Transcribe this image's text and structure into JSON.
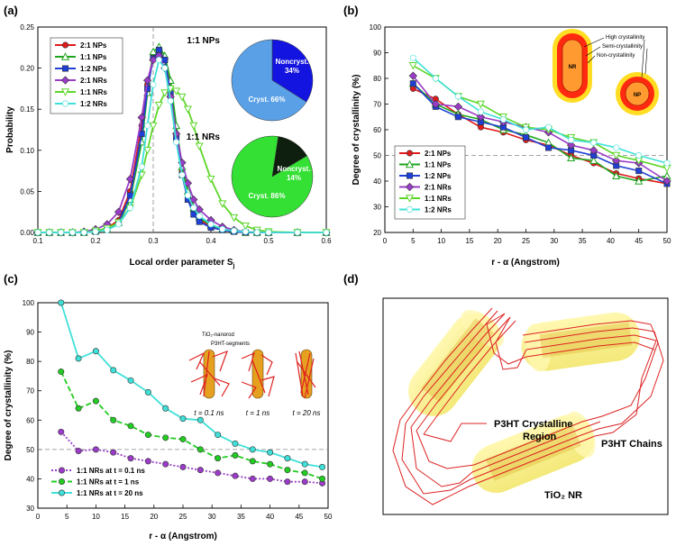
{
  "panels": {
    "a": "(a)",
    "b": "(b)",
    "c": "(c)",
    "d": "(d)"
  },
  "chart_data": [
    {
      "id": "a",
      "type": "line",
      "title": "",
      "xlabel": "Local order parameter S",
      "xlabel_sub": "j",
      "ylabel": "Probability",
      "xlim": [
        0.1,
        0.6
      ],
      "ylim": [
        0,
        0.25
      ],
      "xticks": [
        "0.1",
        "0.2",
        "0.3",
        "0.4",
        "0.5",
        "0.6"
      ],
      "yticks": [
        "0.00",
        "0.05",
        "0.10",
        "0.15",
        "0.20",
        "0.25"
      ],
      "x": [
        0.1,
        0.12,
        0.14,
        0.16,
        0.18,
        0.2,
        0.22,
        0.24,
        0.26,
        0.28,
        0.29,
        0.3,
        0.31,
        0.32,
        0.33,
        0.34,
        0.35,
        0.36,
        0.37,
        0.38,
        0.4,
        0.42,
        0.44,
        0.46,
        0.48,
        0.5,
        0.55,
        0.6
      ],
      "series": [
        {
          "name": "2:1 NPs",
          "color": "#e01b1b",
          "marker": "circle",
          "values": [
            0,
            0,
            0,
            0,
            0,
            0.002,
            0.005,
            0.015,
            0.05,
            0.13,
            0.18,
            0.215,
            0.222,
            0.21,
            0.175,
            0.12,
            0.075,
            0.045,
            0.025,
            0.015,
            0.008,
            0.004,
            0.002,
            0,
            0,
            0,
            0,
            0
          ]
        },
        {
          "name": "1:1 NPs",
          "color": "#1fa51f",
          "marker": "triangle-up",
          "values": [
            0,
            0,
            0,
            0,
            0,
            0.002,
            0.004,
            0.012,
            0.04,
            0.11,
            0.17,
            0.22,
            0.226,
            0.215,
            0.185,
            0.13,
            0.08,
            0.05,
            0.03,
            0.018,
            0.009,
            0.004,
            0.002,
            0,
            0,
            0,
            0,
            0
          ]
        },
        {
          "name": "1:2 NPs",
          "color": "#1f3fd6",
          "marker": "square",
          "values": [
            0,
            0,
            0,
            0,
            0,
            0.001,
            0.004,
            0.012,
            0.045,
            0.12,
            0.175,
            0.212,
            0.222,
            0.21,
            0.17,
            0.115,
            0.07,
            0.04,
            0.022,
            0.013,
            0.006,
            0.003,
            0.001,
            0,
            0,
            0,
            0,
            0
          ]
        },
        {
          "name": "2:1 NRs",
          "color": "#9a3cc8",
          "marker": "diamond",
          "values": [
            0,
            0,
            0,
            0,
            0.001,
            0.004,
            0.01,
            0.025,
            0.065,
            0.14,
            0.185,
            0.21,
            0.215,
            0.2,
            0.165,
            0.12,
            0.085,
            0.06,
            0.04,
            0.028,
            0.015,
            0.007,
            0.003,
            0.001,
            0,
            0,
            0,
            0
          ]
        },
        {
          "name": "1:1 NRs",
          "color": "#5ed62a",
          "marker": "triangle-down",
          "values": [
            0,
            0,
            0,
            0,
            0,
            0.002,
            0.005,
            0.012,
            0.03,
            0.07,
            0.1,
            0.13,
            0.155,
            0.17,
            0.175,
            0.172,
            0.165,
            0.15,
            0.13,
            0.105,
            0.065,
            0.035,
            0.018,
            0.008,
            0.003,
            0.001,
            0,
            0
          ]
        },
        {
          "name": "1:2 NRs",
          "color": "#3fe0d8",
          "marker": "circle-open",
          "values": [
            0,
            0,
            0,
            0,
            0,
            0.001,
            0.003,
            0.01,
            0.03,
            0.08,
            0.13,
            0.18,
            0.21,
            0.2,
            0.16,
            0.11,
            0.07,
            0.045,
            0.03,
            0.02,
            0.01,
            0.004,
            0.002,
            0.001,
            0,
            0,
            0,
            0
          ]
        }
      ],
      "vline": 0.3,
      "pies": [
        {
          "title": "1:1 NPs",
          "slices": [
            {
              "label": "Noncryst.",
              "pct": "34%",
              "value": 34,
              "color": "#1414e0"
            },
            {
              "label": "Cryst.",
              "pct": "66%",
              "value": 66,
              "color": "#5aa0e6"
            }
          ]
        },
        {
          "title": "1:1 NRs",
          "slices": [
            {
              "label": "Noncryst.",
              "pct": "14%",
              "value": 14,
              "color": "#0f1f0f"
            },
            {
              "label": "Cryst.",
              "pct": "86%",
              "value": 86,
              "color": "#33e033"
            }
          ]
        }
      ]
    },
    {
      "id": "b",
      "type": "line",
      "title": "",
      "xlabel": "r - α (Angstrom)",
      "ylabel": "Degree of crystallinity (%)",
      "xlim": [
        0,
        50
      ],
      "ylim": [
        20,
        100
      ],
      "xticks": [
        "0",
        "5",
        "10",
        "15",
        "20",
        "25",
        "30",
        "35",
        "40",
        "45",
        "50"
      ],
      "yticks": [
        "20",
        "30",
        "40",
        "50",
        "60",
        "70",
        "80",
        "90",
        "100"
      ],
      "hline": 50,
      "series": [
        {
          "name": "2:1 NPs",
          "color": "#e01b1b",
          "marker": "circle",
          "x": [
            5,
            9,
            13,
            17,
            21,
            25,
            29,
            33,
            37,
            41,
            45,
            50
          ],
          "values": [
            76,
            72,
            66,
            61,
            59,
            56,
            54,
            50,
            47,
            43,
            41,
            39
          ]
        },
        {
          "name": "1:1 NPs",
          "color": "#1fa51f",
          "marker": "triangle-up",
          "x": [
            5,
            9,
            13,
            17,
            21,
            25,
            29,
            33,
            37,
            41,
            45,
            50
          ],
          "values": [
            78,
            70,
            66,
            64,
            60,
            58,
            55,
            49,
            48,
            42,
            40,
            42
          ]
        },
        {
          "name": "1:2 NPs",
          "color": "#1f3fd6",
          "marker": "square",
          "x": [
            5,
            9,
            13,
            17,
            21,
            25,
            29,
            33,
            37,
            41,
            45,
            50
          ],
          "values": [
            78,
            69,
            65,
            63,
            61,
            57,
            53,
            52,
            50,
            46,
            44,
            39
          ]
        },
        {
          "name": "2:1 NRs",
          "color": "#9a3cc8",
          "marker": "diamond",
          "x": [
            5,
            9,
            13,
            17,
            21,
            25,
            29,
            33,
            37,
            41,
            45,
            50
          ],
          "values": [
            81,
            70,
            69,
            65,
            63,
            61,
            59,
            54,
            52,
            48,
            47,
            40
          ]
        },
        {
          "name": "1:1 NRs",
          "color": "#5ed62a",
          "marker": "triangle-down",
          "x": [
            5,
            9,
            13,
            17,
            21,
            25,
            29,
            33,
            37,
            41,
            45,
            50
          ],
          "values": [
            85,
            80,
            73,
            70,
            65,
            61,
            60,
            57,
            55,
            50,
            48,
            45
          ]
        },
        {
          "name": "1:2 NRs",
          "color": "#3fe0d8",
          "marker": "circle-open",
          "x": [
            5,
            9,
            13,
            17,
            21,
            25,
            29,
            33,
            37,
            41,
            45,
            50
          ],
          "values": [
            88,
            80,
            73,
            67,
            64,
            60,
            61,
            56,
            55,
            53,
            50,
            47
          ]
        }
      ],
      "inset_labels": {
        "high": "High crystallinity",
        "semi": "Semi-crystallinity",
        "non": "Non-crystallinity",
        "nr": "NR",
        "np": "NP"
      }
    },
    {
      "id": "c",
      "type": "line",
      "title": "",
      "xlabel": "r - α (Angstrom)",
      "ylabel": "Degree of crystallinity (%)",
      "xlim": [
        0,
        50
      ],
      "ylim": [
        30,
        100
      ],
      "xticks": [
        "0",
        "5",
        "10",
        "15",
        "20",
        "25",
        "30",
        "35",
        "40",
        "45",
        "50"
      ],
      "yticks": [
        "30",
        "40",
        "50",
        "60",
        "70",
        "80",
        "90",
        "100"
      ],
      "hline": 50,
      "series": [
        {
          "name": "1:1 NRs at t = 0.1 ns",
          "color": "#9a3cc8",
          "marker": "circle",
          "dash": "2,2",
          "x": [
            4,
            7,
            10,
            13,
            16,
            19,
            22,
            25,
            28,
            31,
            34,
            37,
            40,
            43,
            46,
            49
          ],
          "values": [
            56,
            49.5,
            50,
            49,
            47,
            46,
            45,
            44,
            43,
            42,
            41,
            40,
            40,
            39,
            39,
            38.5
          ]
        },
        {
          "name": "1:1 NRs at t = 1 ns",
          "color": "#22cc22",
          "marker": "circle",
          "dash": "6,3",
          "x": [
            4,
            7,
            10,
            13,
            16,
            19,
            22,
            25,
            28,
            31,
            34,
            37,
            40,
            43,
            46,
            49
          ],
          "values": [
            76.5,
            64,
            66.5,
            60,
            58,
            55,
            54,
            53.5,
            50,
            47,
            48,
            46,
            45,
            43,
            42,
            40
          ]
        },
        {
          "name": "1:1 NRs at t = 20 ns",
          "color": "#3fe0d8",
          "marker": "circle",
          "dash": "",
          "x": [
            4,
            7,
            10,
            13,
            16,
            19,
            22,
            25,
            28,
            31,
            34,
            37,
            40,
            43,
            46,
            49
          ],
          "values": [
            100,
            81,
            83.5,
            77,
            73.5,
            69.5,
            64,
            60.5,
            60,
            55,
            52,
            50,
            49,
            47,
            45,
            44
          ]
        }
      ],
      "inset_labels": {
        "tio2": "TiO₂-nanorod",
        "p3ht": "P3HT-segments",
        "t1": "t = 0.1 ns",
        "t2": "t = 1 ns",
        "t3": "t = 20 ns"
      }
    }
  ],
  "diagram_d": {
    "crystalline": "P3HT Crystalline",
    "region": "Region",
    "chains": "P3HT Chains",
    "nr": "TiO₂ NR"
  }
}
